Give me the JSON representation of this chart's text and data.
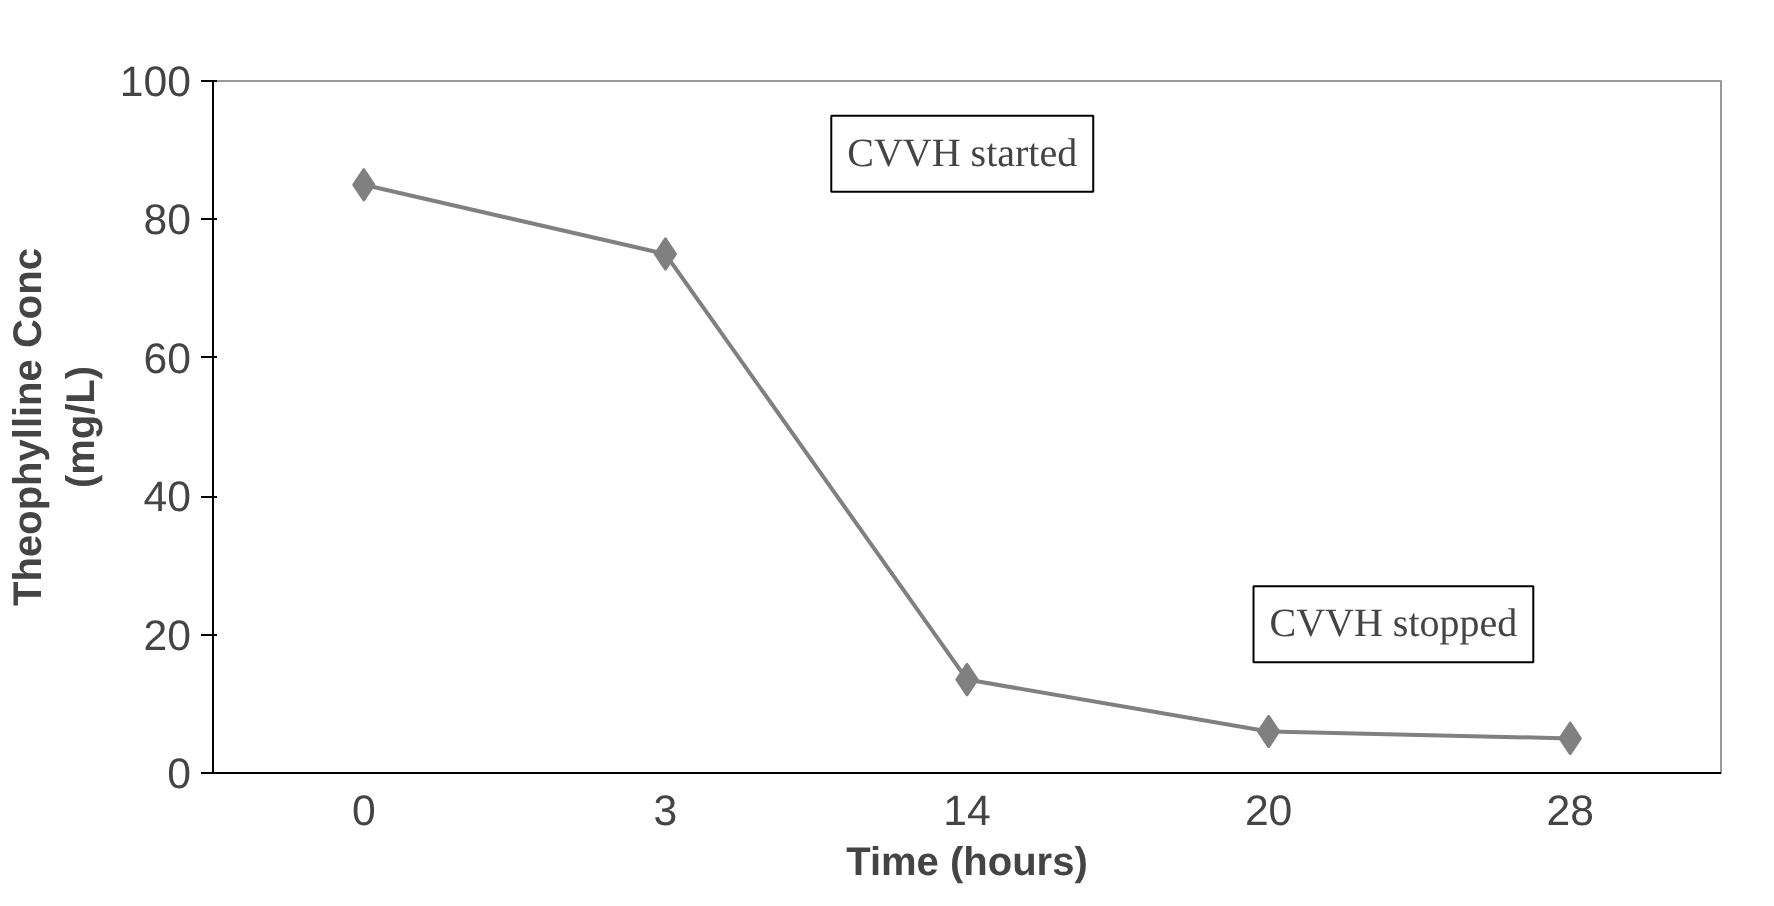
{
  "chart_data": {
    "type": "line",
    "xlabel": "Time (hours)",
    "ylabel": "Theophylline Conc\n(mg/L)",
    "categories": [
      "0",
      "3",
      "14",
      "20",
      "28"
    ],
    "series": [
      {
        "color": "#808080",
        "values": [
          85,
          75,
          13.5,
          6,
          5
        ]
      }
    ],
    "ylim": [
      0,
      100
    ],
    "yticks": [
      0,
      20,
      40,
      60,
      80,
      100
    ],
    "marker": "diamond",
    "line_style": "solid",
    "grid": false,
    "annotations": [
      "CVVH started",
      "CVVH stopped"
    ]
  }
}
